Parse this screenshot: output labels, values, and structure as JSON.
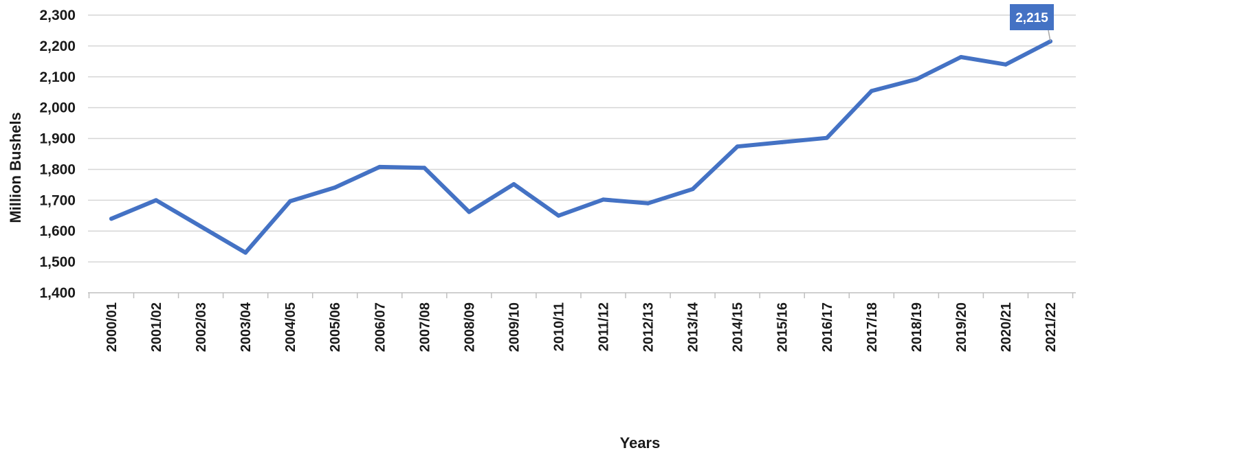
{
  "chart_data": {
    "type": "line",
    "title": "",
    "xlabel": "Years",
    "ylabel": "Million Bushels",
    "ylim": [
      1400,
      2300
    ],
    "y_ticks": [
      1400,
      1500,
      1600,
      1700,
      1800,
      1900,
      2000,
      2100,
      2200,
      2300
    ],
    "y_tick_labels": [
      "1,400",
      "1,500",
      "1,600",
      "1,700",
      "1,800",
      "1,900",
      "2,000",
      "2,100",
      "2,200",
      "2,300"
    ],
    "grid": true,
    "legend": "none",
    "categories": [
      "2000/01",
      "2001/02",
      "2002/03",
      "2003/04",
      "2004/05",
      "2005/06",
      "2006/07",
      "2007/08",
      "2008/09",
      "2009/10",
      "2010/11",
      "2011/12",
      "2012/13",
      "2013/14",
      "2014/15",
      "2015/16",
      "2016/17",
      "2017/18",
      "2018/19",
      "2019/20",
      "2020/21",
      "2021/22"
    ],
    "series": [
      {
        "values": [
          1640,
          1700,
          1615,
          1530,
          1697,
          1741,
          1808,
          1805,
          1662,
          1752,
          1650,
          1702,
          1690,
          1736,
          1874,
          1888,
          1902,
          2054,
          2092,
          2164,
          2140,
          2215
        ],
        "color": "#4472c4"
      }
    ],
    "annotations": [
      {
        "category": "2021/22",
        "value": 2215,
        "text": "2,215",
        "background": "#4472c4",
        "text_color": "#ffffff"
      }
    ]
  }
}
